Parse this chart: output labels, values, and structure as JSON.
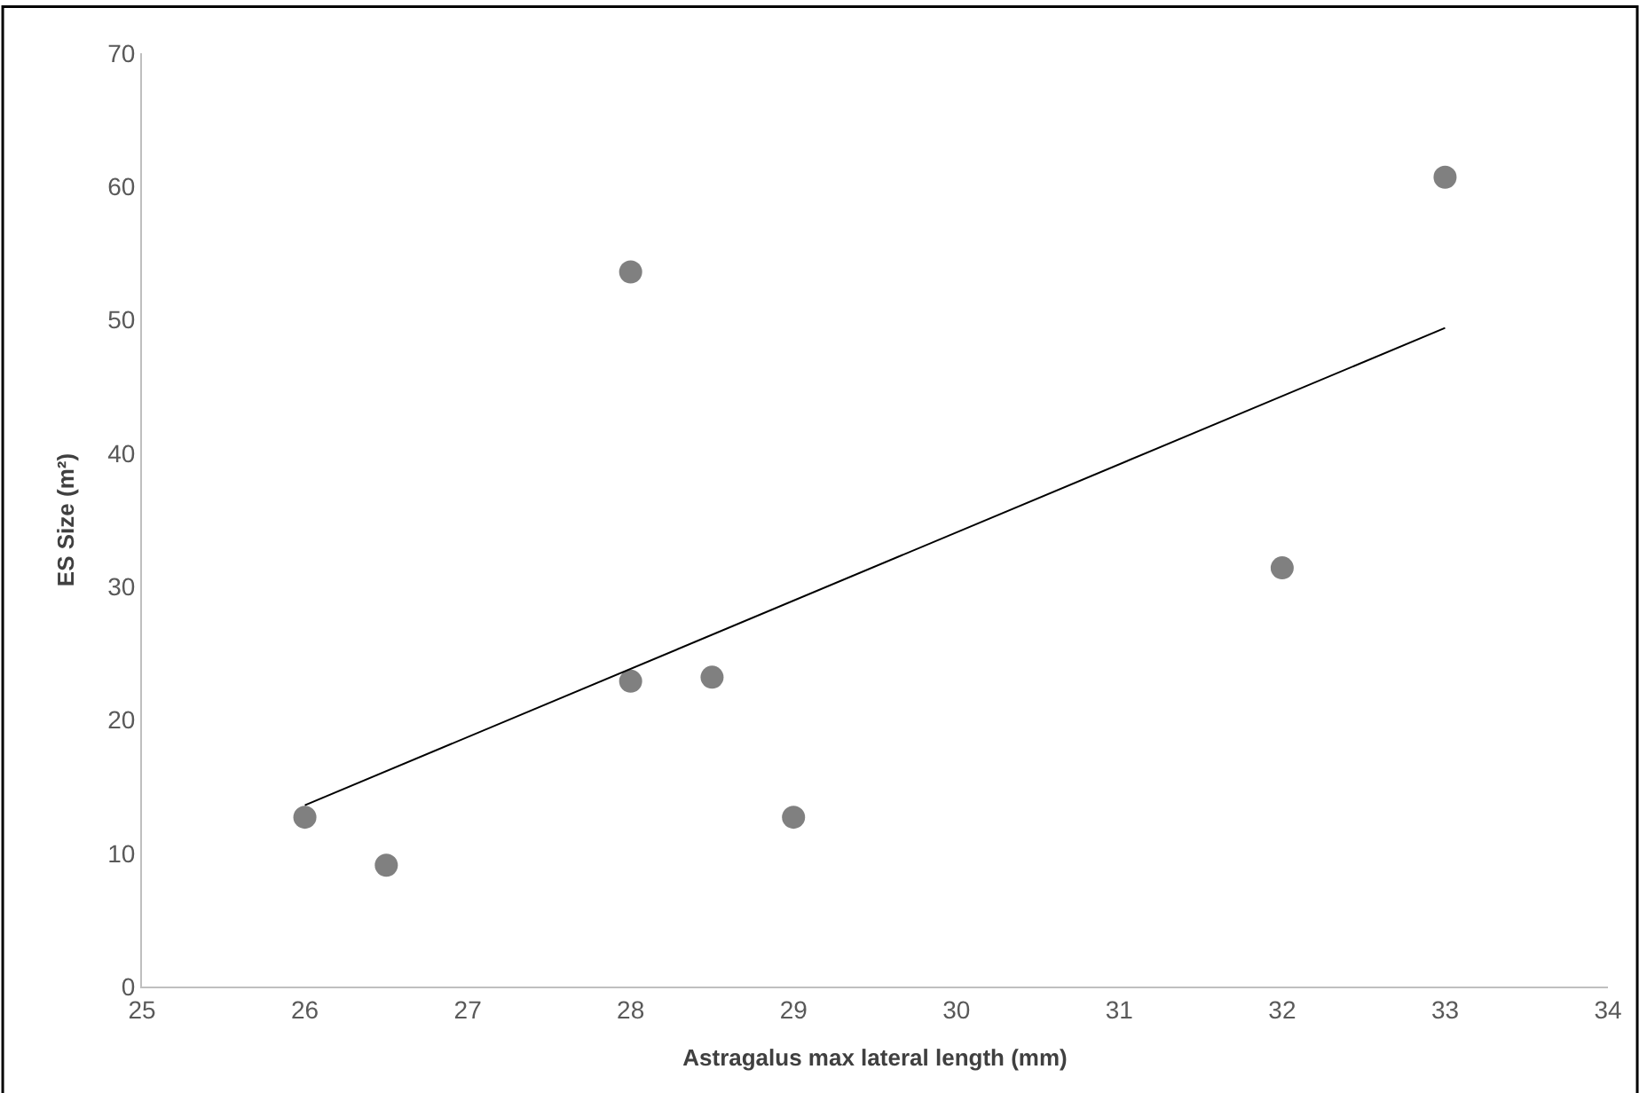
{
  "chart_data": {
    "type": "scatter",
    "xlabel": "Astragalus max lateral length (mm)",
    "ylabel": "ES Size (m²)",
    "x": [
      26,
      26.5,
      28,
      28,
      28.5,
      29,
      32,
      33
    ],
    "series": [
      {
        "color": "#808080",
        "marker": "circle",
        "values": [
          12.7,
          9.1,
          53.6,
          22.9,
          23.2,
          12.7,
          31.4,
          60.7
        ]
      },
      {
        "type": "line",
        "color": "#000000",
        "marker": "none",
        "x": [
          26,
          33
        ],
        "values": [
          13.6,
          49.4
        ]
      }
    ],
    "xlim": [
      25,
      34
    ],
    "xticks": [
      25,
      26,
      27,
      28,
      29,
      30,
      31,
      32,
      33,
      34
    ],
    "ylim": [
      0,
      70
    ],
    "yticks": [
      0,
      10,
      20,
      30,
      40,
      50,
      60,
      70
    ],
    "line_style": "solid"
  }
}
